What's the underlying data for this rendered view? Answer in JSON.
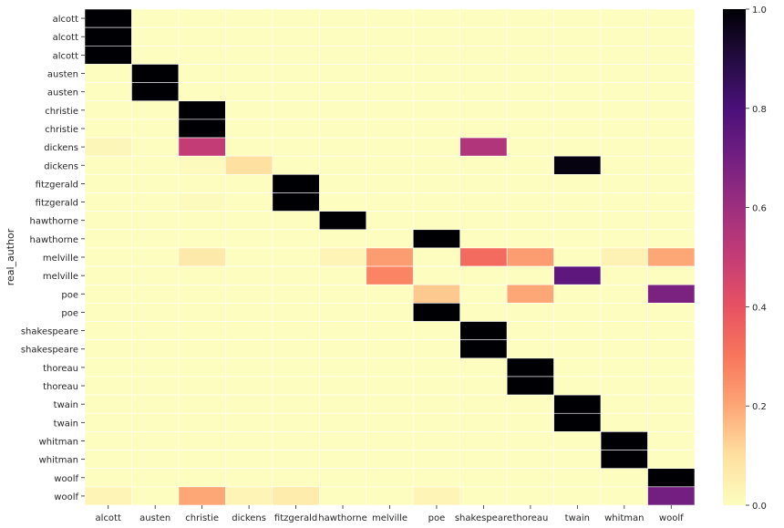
{
  "chart_data": {
    "type": "heatmap",
    "ylabel": "real_author",
    "xlabel": "",
    "columns": [
      "alcott",
      "austen",
      "christie",
      "dickens",
      "fitzgerald",
      "hawthorne",
      "melville",
      "poe",
      "shakespeare",
      "thoreau",
      "twain",
      "whitman",
      "woolf"
    ],
    "rows": [
      "alcott",
      "alcott",
      "alcott",
      "austen",
      "austen",
      "christie",
      "christie",
      "dickens",
      "dickens",
      "fitzgerald",
      "fitzgerald",
      "hawthorne",
      "hawthorne",
      "melville",
      "melville",
      "poe",
      "poe",
      "shakespeare",
      "shakespeare",
      "thoreau",
      "thoreau",
      "twain",
      "twain",
      "whitman",
      "whitman",
      "woolf",
      "woolf"
    ],
    "values": [
      [
        1,
        0,
        0,
        0,
        0,
        0,
        0,
        0,
        0,
        0,
        0,
        0,
        0
      ],
      [
        1,
        0,
        0,
        0,
        0,
        0,
        0,
        0,
        0,
        0,
        0,
        0,
        0
      ],
      [
        1,
        0,
        0,
        0,
        0,
        0,
        0,
        0,
        0,
        0,
        0,
        0,
        0
      ],
      [
        0,
        1,
        0,
        0,
        0,
        0,
        0,
        0,
        0,
        0,
        0,
        0,
        0
      ],
      [
        0,
        1,
        0,
        0,
        0,
        0,
        0,
        0,
        0,
        0,
        0,
        0,
        0
      ],
      [
        0,
        0,
        1,
        0,
        0,
        0,
        0,
        0,
        0,
        0,
        0,
        0,
        0
      ],
      [
        0,
        0,
        1,
        0,
        0,
        0,
        0,
        0,
        0,
        0,
        0,
        0,
        0
      ],
      [
        0.02,
        0,
        0.5,
        0,
        0,
        0,
        0,
        0,
        0.55,
        0,
        0,
        0,
        0
      ],
      [
        0,
        0,
        0.01,
        0.1,
        0,
        0,
        0,
        0,
        0,
        0,
        0.98,
        0,
        0
      ],
      [
        0,
        0,
        0,
        0,
        1,
        0,
        0,
        0,
        0,
        0,
        0,
        0,
        0
      ],
      [
        0,
        0,
        0.01,
        0,
        1,
        0,
        0,
        0,
        0,
        0,
        0,
        0,
        0
      ],
      [
        0,
        0,
        0,
        0,
        0,
        1,
        0,
        0,
        0,
        0,
        0,
        0,
        0
      ],
      [
        0,
        0,
        0,
        0,
        0,
        0,
        0,
        1,
        0,
        0,
        0,
        0,
        0
      ],
      [
        0,
        0,
        0.07,
        0,
        0,
        0.03,
        0.22,
        0,
        0.33,
        0.22,
        0,
        0.04,
        0.2
      ],
      [
        0,
        0,
        0,
        0,
        0,
        0,
        0.27,
        0,
        0,
        0,
        0.75,
        0,
        0
      ],
      [
        0,
        0,
        0,
        0,
        0,
        0,
        0,
        0.14,
        0,
        0.2,
        0,
        0,
        0.68
      ],
      [
        0,
        0,
        0,
        0,
        0,
        0,
        0,
        1,
        0,
        0,
        0,
        0,
        0
      ],
      [
        0,
        0,
        0,
        0,
        0,
        0,
        0,
        0,
        1,
        0,
        0,
        0,
        0
      ],
      [
        0,
        0,
        0,
        0,
        0,
        0,
        0,
        0,
        1,
        0,
        0,
        0,
        0
      ],
      [
        0,
        0,
        0,
        0,
        0,
        0,
        0,
        0,
        0,
        1,
        0,
        0,
        0
      ],
      [
        0,
        0,
        0,
        0,
        0,
        0,
        0,
        0,
        0,
        1,
        0,
        0,
        0
      ],
      [
        0,
        0,
        0,
        0,
        0,
        0,
        0,
        0,
        0,
        0,
        1,
        0,
        0
      ],
      [
        0,
        0,
        0,
        0,
        0,
        0,
        0,
        0,
        0,
        0,
        1,
        0,
        0
      ],
      [
        0,
        0,
        0,
        0,
        0,
        0,
        0,
        0,
        0,
        0,
        0,
        1,
        0
      ],
      [
        0,
        0,
        0,
        0,
        0,
        0,
        0,
        0,
        0,
        0,
        0,
        1,
        0
      ],
      [
        0,
        0,
        0,
        0,
        0,
        0,
        0,
        0,
        0,
        0,
        0,
        0,
        1
      ],
      [
        0.03,
        0,
        0.2,
        0.03,
        0.06,
        0,
        0,
        0.03,
        0,
        0,
        0,
        0,
        0.7
      ]
    ],
    "colormap": "magma_r",
    "colorbar": {
      "range": [
        0,
        1
      ],
      "ticks": [
        "0.0",
        "0.2",
        "0.4",
        "0.6",
        "0.8",
        "1.0"
      ],
      "position": "right"
    },
    "grid": true
  }
}
